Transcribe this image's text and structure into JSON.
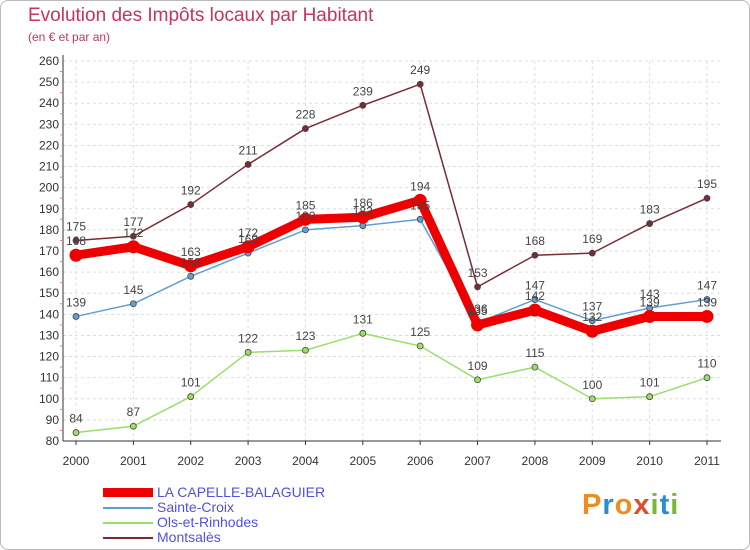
{
  "title": "Evolution des Impôts locaux par Habitant",
  "subtitle": "(en € et par an)",
  "brand": {
    "letters": [
      "P",
      "r",
      "o",
      "x",
      "i",
      "t",
      "i"
    ],
    "colors": [
      "#f08c1e",
      "#2a8fd0",
      "#f08c1e",
      "#e04d2a",
      "#79b833",
      "#2a8fd0",
      "#79b833"
    ]
  },
  "chart_data": {
    "type": "line",
    "x": [
      "2000",
      "2001",
      "2002",
      "2003",
      "2004",
      "2005",
      "2006",
      "2007",
      "2008",
      "2009",
      "2010",
      "2011"
    ],
    "ylim": [
      80,
      260
    ],
    "yticks": [
      80,
      90,
      100,
      110,
      120,
      130,
      140,
      150,
      160,
      170,
      180,
      190,
      200,
      210,
      220,
      230,
      240,
      250,
      260
    ],
    "grid": true,
    "series": [
      {
        "name": "LA CAPELLE-BALAGUIER",
        "color": "#ee0000",
        "values": [
          168,
          172,
          163,
          172,
          185,
          186,
          194,
          135,
          142,
          132,
          139,
          139
        ]
      },
      {
        "name": "Sainte-Croix",
        "color": "#5f9fd5",
        "values": [
          139,
          145,
          158,
          169,
          180,
          182,
          185,
          136,
          147,
          137,
          143,
          147
        ]
      },
      {
        "name": "Ols-et-Rinhodes",
        "color": "#99e06a",
        "values": [
          84,
          87,
          101,
          122,
          123,
          131,
          125,
          109,
          115,
          100,
          101,
          110
        ]
      },
      {
        "name": "Montsalès",
        "color": "#7a2b33",
        "values": [
          175,
          177,
          192,
          211,
          228,
          239,
          249,
          153,
          168,
          169,
          183,
          195
        ]
      }
    ]
  }
}
